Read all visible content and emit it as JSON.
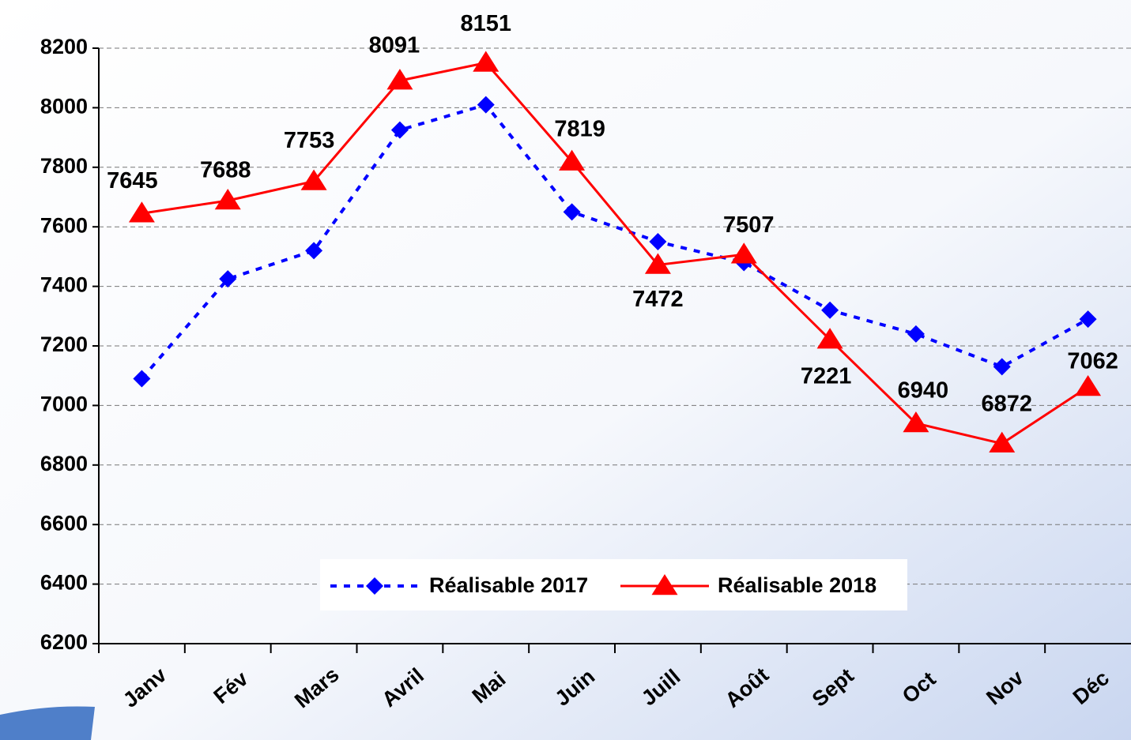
{
  "chart_data": {
    "type": "line",
    "categories": [
      "Janv",
      "Fév",
      "Mars",
      "Avril",
      "Mai",
      "Juin",
      "Juill",
      "Août",
      "Sept",
      "Oct",
      "Nov",
      "Déc"
    ],
    "series": [
      {
        "name": "Réalisable 2017",
        "color": "#0000ff",
        "values": [
          7090,
          7425,
          7520,
          7925,
          8010,
          7650,
          7550,
          7480,
          7320,
          7240,
          7130,
          7290
        ]
      },
      {
        "name": "Réalisable 2018",
        "color": "#ff0000",
        "values": [
          7645,
          7688,
          7753,
          8091,
          8151,
          7819,
          7472,
          7507,
          7221,
          6940,
          6872,
          7062
        ]
      }
    ],
    "ylim": [
      6200,
      8200
    ],
    "yticks": [
      6200,
      6400,
      6600,
      6800,
      7000,
      7200,
      7400,
      7600,
      7800,
      8000,
      8200
    ],
    "grid": true,
    "legend": "bottom"
  }
}
